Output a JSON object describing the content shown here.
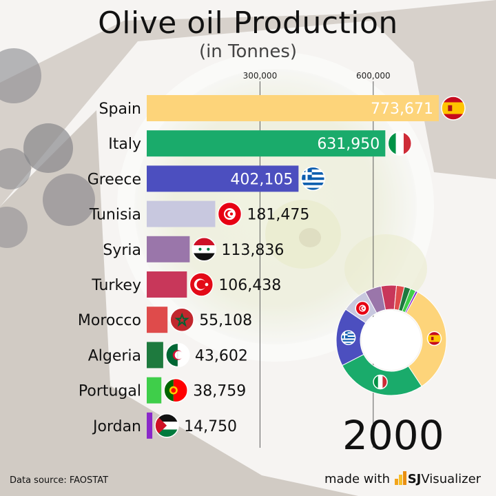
{
  "title": "Olive oil Production",
  "subtitle": "(in Tonnes)",
  "source": "Data source: FAOSTAT",
  "credit": {
    "prefix": "made with",
    "brand_a": "SJ",
    "brand_b": "Visualizer"
  },
  "year": "2000",
  "colors": {
    "Spain": "#fdd47a",
    "Italy": "#1aab6b",
    "Greece": "#4c4fbf",
    "Tunisia": "#c8c8df",
    "Syria": "#9a76aa",
    "Turkey": "#c8375a",
    "Morocco": "#df4b4b",
    "Algeria": "#1e7a3e",
    "Portugal": "#3fce4a",
    "Jordan": "#8a28c9"
  },
  "chart_data": {
    "type": "bar",
    "orientation": "horizontal",
    "title": "Olive oil Production",
    "subtitle": "(in Tonnes)",
    "categories": [
      "Spain",
      "Italy",
      "Greece",
      "Tunisia",
      "Syria",
      "Turkey",
      "Morocco",
      "Algeria",
      "Portugal",
      "Jordan"
    ],
    "values": [
      773671,
      631950,
      402105,
      181475,
      113836,
      106438,
      55108,
      43602,
      38759,
      14750
    ],
    "value_labels": [
      "773,671",
      "631,950",
      "402,105",
      "181,475",
      "113,836",
      "106,438",
      "55,108",
      "43,602",
      "38,759",
      "14,750"
    ],
    "x_ticks": [
      300000,
      600000
    ],
    "x_tick_labels": [
      "300,000",
      "600,000"
    ],
    "xlim": [
      0,
      800000
    ],
    "grid": true,
    "flag_icons": [
      "spain-flag-icon",
      "italy-flag-icon",
      "greece-flag-icon",
      "tunisia-flag-icon",
      "syria-flag-icon",
      "turkey-flag-icon",
      "morocco-flag-icon",
      "algeria-flag-icon",
      "portugal-flag-icon",
      "jordan-flag-icon"
    ],
    "donut": {
      "type": "pie",
      "style": "donut",
      "categories": [
        "Spain",
        "Italy",
        "Greece",
        "Tunisia",
        "Syria",
        "Turkey",
        "Morocco",
        "Algeria",
        "Portugal",
        "Jordan"
      ],
      "values": [
        773671,
        631950,
        402105,
        181475,
        113836,
        106438,
        55108,
        43602,
        38759,
        14750
      ]
    }
  }
}
